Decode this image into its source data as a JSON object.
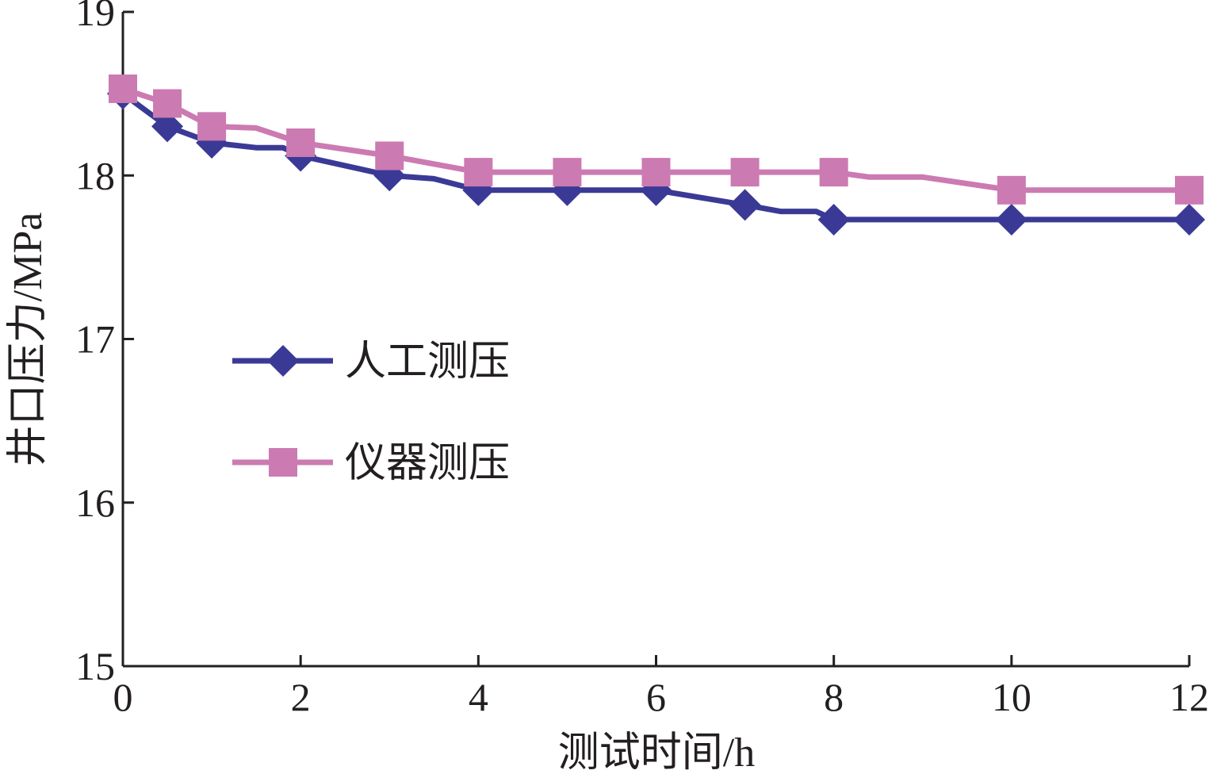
{
  "chart_data": {
    "type": "line",
    "title": "",
    "xlabel": "测试时间/h",
    "ylabel": "井口压力/MPa",
    "xlim": [
      0,
      12
    ],
    "ylim": [
      15,
      19
    ],
    "xticks": [
      0,
      2,
      4,
      6,
      8,
      10,
      12
    ],
    "yticks": [
      15,
      16,
      17,
      18,
      19
    ],
    "grid": false,
    "legend_position": "center-left",
    "series": [
      {
        "name": "人工测压",
        "color": "#3a3a96",
        "marker": "diamond",
        "points": [
          [
            0,
            18.5
          ],
          [
            0.5,
            18.3
          ],
          [
            1,
            18.2
          ],
          [
            1.5,
            18.17
          ],
          [
            1.8,
            18.17
          ],
          [
            2,
            18.12
          ],
          [
            3,
            18.0
          ],
          [
            3.5,
            17.98
          ],
          [
            4,
            17.91
          ],
          [
            5,
            17.91
          ],
          [
            6,
            17.91
          ],
          [
            7,
            17.82
          ],
          [
            7.4,
            17.78
          ],
          [
            7.8,
            17.78
          ],
          [
            8,
            17.73
          ],
          [
            10,
            17.73
          ],
          [
            12,
            17.73
          ]
        ],
        "marker_x": [
          0,
          0.5,
          1,
          2,
          3,
          4,
          5,
          6,
          7,
          8,
          10,
          12
        ]
      },
      {
        "name": "仪器测压",
        "color": "#cc7ab2",
        "marker": "square",
        "points": [
          [
            0,
            18.53
          ],
          [
            0.5,
            18.44
          ],
          [
            1,
            18.3
          ],
          [
            1.5,
            18.29
          ],
          [
            2,
            18.2
          ],
          [
            3,
            18.12
          ],
          [
            4,
            18.02
          ],
          [
            5,
            18.02
          ],
          [
            6,
            18.02
          ],
          [
            7,
            18.02
          ],
          [
            8,
            18.02
          ],
          [
            8.4,
            17.99
          ],
          [
            9,
            17.99
          ],
          [
            10,
            17.91
          ],
          [
            12,
            17.91
          ]
        ],
        "marker_x": [
          0,
          0.5,
          1,
          2,
          3,
          4,
          5,
          6,
          7,
          8,
          10,
          12
        ]
      }
    ]
  }
}
